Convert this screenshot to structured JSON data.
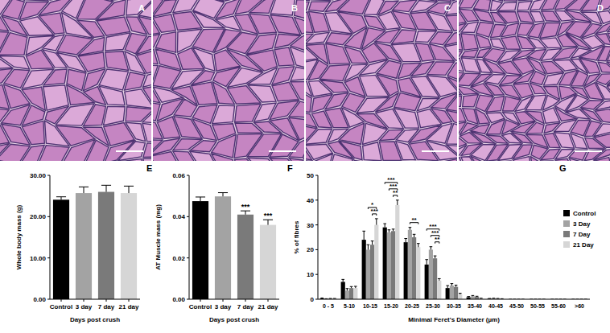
{
  "panel_labels": {
    "images": [
      "A",
      "B",
      "C",
      "D"
    ],
    "charts": [
      "E",
      "F",
      "G"
    ]
  },
  "chart_data": [
    {
      "type": "bar",
      "ylabel": "Whole body mass (g)",
      "xlabel": "Days post crush",
      "categories": [
        "Control",
        "3 day",
        "7 day",
        "21 day"
      ],
      "values": [
        24.1,
        25.7,
        26.0,
        25.7
      ],
      "errors": [
        0.7,
        1.5,
        1.6,
        1.7
      ],
      "colors": [
        "#000000",
        "#a3a3a3",
        "#7a7a7a",
        "#d6d6d6"
      ],
      "ylim": [
        0,
        30
      ],
      "yticks": [
        {
          "value": 0,
          "label": "0.00"
        },
        {
          "value": 10,
          "label": "10.00"
        },
        {
          "value": 20,
          "label": "20.00"
        },
        {
          "value": 30,
          "label": "30.00"
        }
      ],
      "grid": false
    },
    {
      "type": "bar",
      "ylabel": "AT Muscle mass (mg)",
      "xlabel": "Days post crush",
      "categories": [
        "Control",
        "3 day",
        "7 day",
        "21 day"
      ],
      "values": [
        0.0475,
        0.0498,
        0.041,
        0.036
      ],
      "errors": [
        0.002,
        0.0018,
        0.0018,
        0.0025
      ],
      "significance": [
        null,
        null,
        "***",
        "***"
      ],
      "colors": [
        "#000000",
        "#a3a3a3",
        "#7a7a7a",
        "#d6d6d6"
      ],
      "ylim": [
        0,
        0.06
      ],
      "yticks": [
        {
          "value": 0,
          "label": "0.00"
        },
        {
          "value": 0.02,
          "label": "0.02"
        },
        {
          "value": 0.04,
          "label": "0.04"
        },
        {
          "value": 0.06,
          "label": "0.06"
        }
      ],
      "grid": false
    },
    {
      "type": "bar",
      "ylabel": "% of fibres",
      "xlabel": "Minimal Feret's Diameter (µm)",
      "categories": [
        "0 - 5",
        "5-10",
        "10-15",
        "15-20",
        "20-25",
        "25-30",
        "30-35",
        "35-40",
        "40-45",
        "45-50",
        "50-55",
        "55-60",
        ">60"
      ],
      "series": [
        {
          "name": "Control",
          "color": "#000000",
          "values": [
            0.3,
            7.0,
            24.0,
            29.0,
            23.0,
            14.0,
            4.5,
            0.8,
            0.2,
            0,
            0,
            0,
            0
          ],
          "errors": [
            0.2,
            1.0,
            3.5,
            1.5,
            1.5,
            2.0,
            1.0,
            0.3,
            0.1,
            0,
            0,
            0,
            0
          ]
        },
        {
          "name": "3 Day",
          "color": "#a3a3a3",
          "values": [
            0.1,
            3.5,
            20.0,
            27.0,
            28.0,
            20.0,
            5.5,
            1.2,
            0.3,
            0,
            0,
            0,
            0
          ],
          "errors": [
            0.1,
            0.8,
            2.0,
            1.0,
            1.0,
            1.2,
            0.8,
            0.3,
            0.1,
            0,
            0,
            0,
            0
          ]
        },
        {
          "name": "7 Day",
          "color": "#7a7a7a",
          "values": [
            0.2,
            4.5,
            22.0,
            27.5,
            25.0,
            16.5,
            5.0,
            1.0,
            0.2,
            0,
            0,
            0,
            0
          ],
          "errors": [
            0.1,
            0.6,
            1.5,
            0.8,
            1.2,
            1.0,
            0.7,
            0.2,
            0.1,
            0,
            0,
            0,
            0
          ]
        },
        {
          "name": "21 Day",
          "color": "#d6d6d6",
          "values": [
            0.2,
            4.5,
            30.0,
            38.0,
            21.0,
            7.5,
            2.0,
            0.3,
            0.1,
            0,
            0,
            0,
            0
          ],
          "errors": [
            0.1,
            0.7,
            2.5,
            2.0,
            1.5,
            0.8,
            0.4,
            0.1,
            0.1,
            0,
            0,
            0,
            0
          ]
        }
      ],
      "comparisons": [
        {
          "category": "10-15",
          "series": [
            "7 Day",
            "21 Day"
          ],
          "label": "***"
        },
        {
          "category": "10-15",
          "series": [
            "3 Day",
            "21 Day"
          ],
          "label": "*"
        },
        {
          "category": "15-20",
          "series": [
            "7 Day",
            "21 Day"
          ],
          "label": "**"
        },
        {
          "category": "15-20",
          "series": [
            "3 Day",
            "21 Day"
          ],
          "label": "***"
        },
        {
          "category": "15-20",
          "series": [
            "Control",
            "21 Day"
          ],
          "label": "***"
        },
        {
          "category": "20-25",
          "series": [
            "3 Day",
            "21 Day"
          ],
          "label": "**"
        },
        {
          "category": "25-30",
          "series": [
            "7 Day",
            "21 Day"
          ],
          "label": "**"
        },
        {
          "category": "25-30",
          "series": [
            "3 Day",
            "21 Day"
          ],
          "label": "***"
        },
        {
          "category": "25-30",
          "series": [
            "Control",
            "21 Day"
          ],
          "label": "***"
        }
      ],
      "ylim": [
        0,
        50
      ],
      "yticks": [
        0,
        10,
        20,
        30,
        40,
        50
      ],
      "legend": "right",
      "grid": false
    }
  ]
}
